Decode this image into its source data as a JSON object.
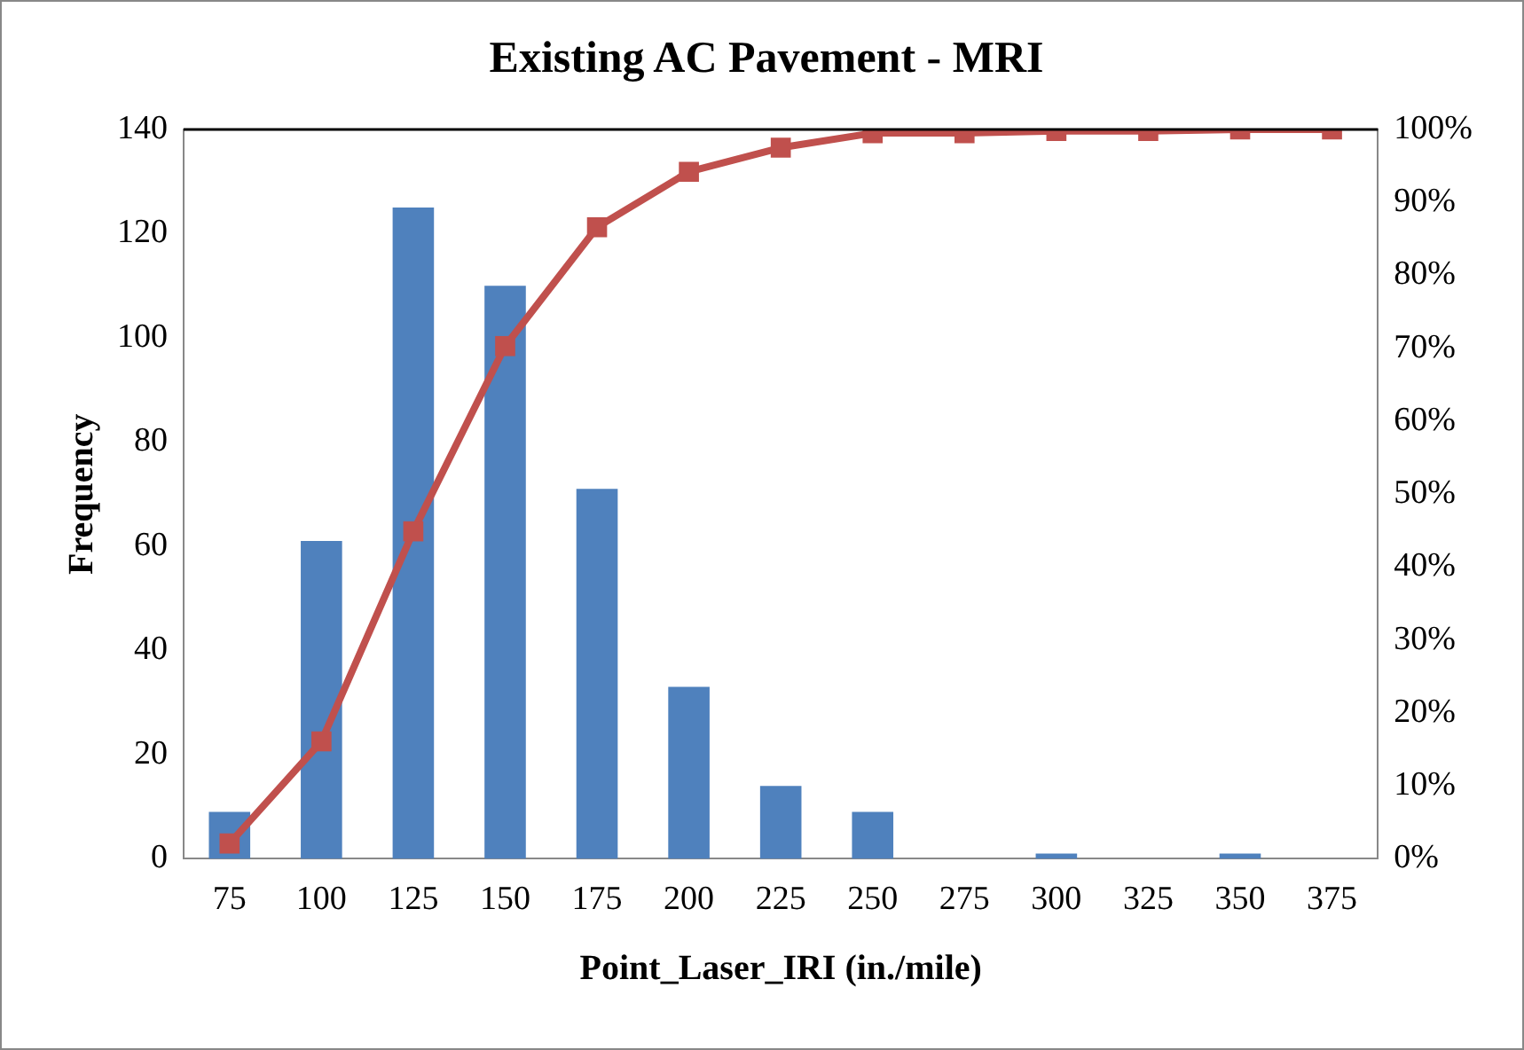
{
  "chart_data": {
    "type": "bar",
    "title": "Existing AC Pavement - MRI",
    "xlabel": "Point_Laser_IRI (in./mile)",
    "ylabel": "Frequency",
    "categories": [
      "75",
      "100",
      "125",
      "150",
      "175",
      "200",
      "225",
      "250",
      "275",
      "300",
      "325",
      "350",
      "375"
    ],
    "series": [
      {
        "color": "#4f81bd",
        "values": [
          9,
          61,
          125,
          110,
          71,
          33,
          14,
          9,
          0,
          1,
          0,
          1,
          0
        ]
      },
      {
        "type": "line",
        "axis": "y2",
        "color": "#c0504d",
        "marker": "square",
        "values": [
          2.1,
          16.1,
          44.9,
          70.3,
          86.6,
          94.2,
          97.5,
          99.5,
          99.5,
          99.8,
          99.8,
          100,
          100
        ]
      }
    ],
    "ylim": [
      0,
      140
    ],
    "yticks": [
      0,
      20,
      40,
      60,
      80,
      100,
      120,
      140
    ],
    "y2lim": [
      0,
      100
    ],
    "y2ticks": [
      {
        "value": 0,
        "label": "0%"
      },
      {
        "value": 10,
        "label": "10%"
      },
      {
        "value": 20,
        "label": "20%"
      },
      {
        "value": 30,
        "label": "30%"
      },
      {
        "value": 40,
        "label": "40%"
      },
      {
        "value": 50,
        "label": "50%"
      },
      {
        "value": 60,
        "label": "60%"
      },
      {
        "value": 70,
        "label": "70%"
      },
      {
        "value": 80,
        "label": "80%"
      },
      {
        "value": 90,
        "label": "90%"
      },
      {
        "value": 100,
        "label": "100%"
      }
    ],
    "grid": false,
    "legend": false
  }
}
